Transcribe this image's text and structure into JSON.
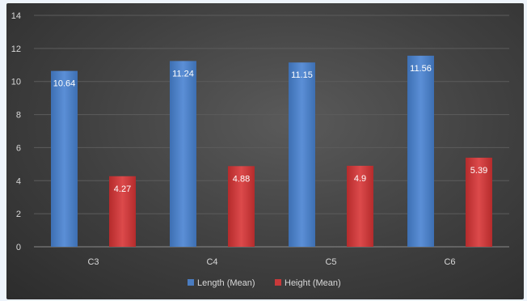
{
  "chart_data": {
    "type": "bar",
    "categories": [
      "C3",
      "C4",
      "C5",
      "C6"
    ],
    "series": [
      {
        "name": "Length (Mean)",
        "values": [
          10.64,
          11.24,
          11.15,
          11.56
        ],
        "color": "#4a7cc0"
      },
      {
        "name": "Height (Mean)",
        "values": [
          4.27,
          4.88,
          4.9,
          5.39
        ],
        "color": "#c9393a"
      }
    ],
    "data_labels": [
      [
        "10.64",
        "11.24",
        "11.15",
        "11.56"
      ],
      [
        "4.27",
        "4.88",
        "4.9",
        "5.39"
      ]
    ],
    "y_ticks": [
      "0",
      "2",
      "4",
      "6",
      "8",
      "10",
      "12",
      "14"
    ],
    "ylim": [
      0,
      14
    ],
    "grid": true,
    "legend_position": "bottom",
    "title": "",
    "xlabel": "",
    "ylabel": ""
  }
}
